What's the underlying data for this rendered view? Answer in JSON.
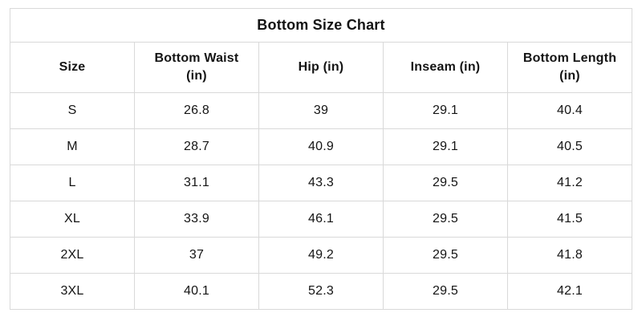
{
  "theme": {
    "border_color": "#d9d9d9",
    "text_color": "#141414",
    "background_color": "#ffffff"
  },
  "table": {
    "title": "Bottom Size Chart",
    "columns": [
      "Size",
      "Bottom Waist\n(in)",
      "Hip (in)",
      "Inseam (in)",
      "Bottom Length\n(in)"
    ],
    "rows": [
      {
        "size": "S",
        "bottom_waist_in": "26.8",
        "hip_in": "39",
        "inseam_in": "29.1",
        "bottom_length_in": "40.4"
      },
      {
        "size": "M",
        "bottom_waist_in": "28.7",
        "hip_in": "40.9",
        "inseam_in": "29.1",
        "bottom_length_in": "40.5"
      },
      {
        "size": "L",
        "bottom_waist_in": "31.1",
        "hip_in": "43.3",
        "inseam_in": "29.5",
        "bottom_length_in": "41.2"
      },
      {
        "size": "XL",
        "bottom_waist_in": "33.9",
        "hip_in": "46.1",
        "inseam_in": "29.5",
        "bottom_length_in": "41.5"
      },
      {
        "size": "2XL",
        "bottom_waist_in": "37",
        "hip_in": "49.2",
        "inseam_in": "29.5",
        "bottom_length_in": "41.8"
      },
      {
        "size": "3XL",
        "bottom_waist_in": "40.1",
        "hip_in": "52.3",
        "inseam_in": "29.5",
        "bottom_length_in": "42.1"
      }
    ]
  }
}
